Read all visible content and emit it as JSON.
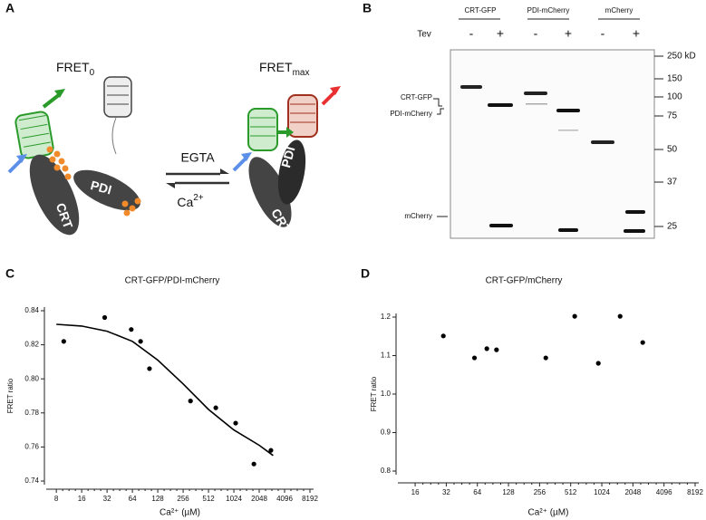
{
  "figure_a": {
    "panel_label": "A",
    "fret0": {
      "text": "FRET",
      "sub": "0"
    },
    "fretmax": {
      "text": "FRET",
      "sub": "max"
    },
    "forward": "EGTA",
    "reverse": {
      "text": "Ca",
      "sup": "2+"
    },
    "left": {
      "crt": "CRT",
      "pdi": "PDI"
    },
    "right": {
      "crt": "CRT",
      "pdi": "PDI"
    }
  },
  "figure_b": {
    "panel_label": "B",
    "lane_groups": [
      "CRT-GFP",
      "PDI-mCherry",
      "mCherry"
    ],
    "tev_label": "Tev",
    "tev": [
      "-",
      "+",
      "-",
      "+",
      "-",
      "+"
    ],
    "markers": [
      "250 kD",
      "150",
      "100",
      "75",
      "50",
      "37",
      "25"
    ],
    "band_labels": [
      "CRT-GFP",
      "PDI-mCherry",
      "mCherry"
    ]
  },
  "chart_data": [
    {
      "type": "scatter",
      "panel_label": "C",
      "title": "CRT-GFP/PDI-mCherry",
      "xlabel": "Ca²⁺ (µM)",
      "ylabel": "FRET ratio",
      "xscale": "log2",
      "color": "#000000",
      "x": [
        9.8,
        30,
        62,
        80,
        102,
        313,
        625,
        1075,
        1770,
        2820
      ],
      "values": [
        0.822,
        0.836,
        0.829,
        0.822,
        0.806,
        0.787,
        0.783,
        0.774,
        0.75,
        0.758
      ],
      "fit": {
        "x": [
          8,
          16,
          32,
          64,
          128,
          256,
          512,
          1024,
          2048,
          3000
        ],
        "values": [
          0.832,
          0.831,
          0.828,
          0.822,
          0.811,
          0.797,
          0.782,
          0.77,
          0.761,
          0.755
        ]
      },
      "xlim": [
        6.7,
        8192
      ],
      "ylim": [
        0.74,
        0.84
      ],
      "xticks": [
        8,
        16,
        32,
        64,
        128,
        256,
        512,
        1024,
        2048,
        4096,
        8192
      ],
      "yticks": [
        0.74,
        0.76,
        0.78,
        {
          "value": 0.8,
          "label": "0.80"
        },
        0.82,
        0.84
      ]
    },
    {
      "type": "scatter",
      "panel_label": "D",
      "title": "CRT-GFP/mCherry",
      "xlabel": "Ca²⁺ (µM)",
      "ylabel": "FRET ratio",
      "xscale": "log2",
      "color": "#000000",
      "x": [
        30,
        60,
        79,
        98,
        294,
        560,
        948,
        1540,
        2550
      ],
      "values": [
        1.151,
        1.094,
        1.118,
        1.115,
        1.094,
        1.202,
        1.08,
        1.202,
        1.134
      ],
      "xlim": [
        11.8,
        8192
      ],
      "ylim": [
        0.8,
        1.2
      ],
      "xticks": [
        16,
        32,
        64,
        128,
        256,
        512,
        1024,
        2048,
        4096,
        8192
      ],
      "yticks": [
        0.8,
        0.9,
        {
          "value": 1,
          "label": "1.0"
        },
        1.1,
        1.2
      ]
    }
  ]
}
